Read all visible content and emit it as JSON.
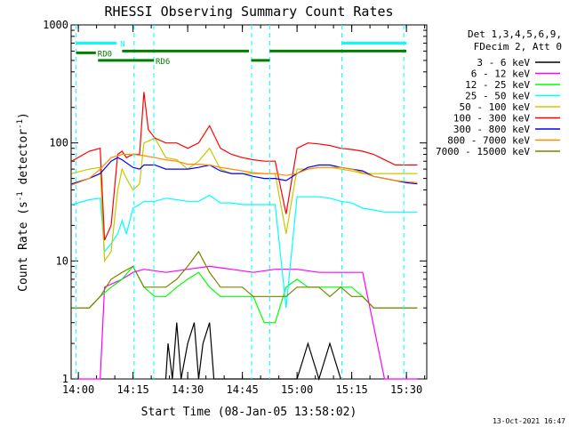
{
  "chart_data": {
    "type": "line",
    "title": "RHESSI Observing Summary Count Rates",
    "xlabel": "Start Time (08-Jan-05 13:58:02)",
    "ylabel_main": "Count Rate (s",
    "ylabel_sup1": "-1",
    "ylabel_mid": " detector",
    "ylabel_sup2": "-1",
    "ylabel_end": ")",
    "yscale": "log",
    "xlim": [
      13.967,
      15.593
    ],
    "ylim": [
      1,
      1000
    ],
    "x_ticks": [
      {
        "value": 14.0,
        "label": "14:00"
      },
      {
        "value": 14.25,
        "label": "14:15"
      },
      {
        "value": 14.5,
        "label": "14:30"
      },
      {
        "value": 14.75,
        "label": "14:45"
      },
      {
        "value": 15.0,
        "label": "15:00"
      },
      {
        "value": 15.25,
        "label": "15:15"
      },
      {
        "value": 15.5,
        "label": "15:30"
      }
    ],
    "y_ticks": [
      {
        "value": 1,
        "label": "1"
      },
      {
        "value": 10,
        "label": "10"
      },
      {
        "value": 100,
        "label": "100"
      },
      {
        "value": 1000,
        "label": "1000"
      }
    ],
    "legend_header": [
      "Det 1,3,4,5,6,9,",
      "FDecim 2, Att 0"
    ],
    "legend_position": "right",
    "timestamp": "13-Oct-2021 16:47",
    "series": [
      {
        "name": "3 - 6 keV",
        "color": "#000000",
        "x": [
          14.4,
          14.41,
          14.43,
          14.45,
          14.47,
          14.5,
          14.53,
          14.55,
          14.57,
          14.6,
          14.62,
          15.0,
          15.05,
          15.1,
          15.15,
          15.2
        ],
        "y": [
          1.0,
          2.0,
          1.0,
          3.0,
          1.0,
          2.0,
          3.0,
          1.0,
          2.0,
          3.0,
          1.0,
          1.0,
          2.0,
          1.0,
          2.0,
          1.0
        ]
      },
      {
        "name": "6 - 12 keV",
        "color": "#ff00ff",
        "x": [
          14.0,
          14.1,
          14.12,
          14.2,
          14.25,
          14.3,
          14.4,
          14.5,
          14.6,
          14.7,
          14.8,
          14.9,
          15.0,
          15.1,
          15.2,
          15.3,
          15.4,
          15.55
        ],
        "y": [
          1.0,
          1.0,
          6.0,
          7.0,
          8.0,
          8.5,
          8.0,
          8.5,
          9.0,
          8.5,
          8.0,
          8.5,
          8.5,
          8.0,
          8.0,
          8.0,
          1.0,
          1.0
        ]
      },
      {
        "name": "12 - 25 keV",
        "color": "#00ff00",
        "x": [
          13.97,
          14.05,
          14.1,
          14.15,
          14.2,
          14.25,
          14.3,
          14.35,
          14.4,
          14.45,
          14.5,
          14.55,
          14.6,
          14.65,
          14.7,
          14.75,
          14.8,
          14.85,
          14.9,
          14.95,
          15.0,
          15.05,
          15.1,
          15.15,
          15.2,
          15.25,
          15.3,
          15.35,
          15.4,
          15.45,
          15.5,
          15.55
        ],
        "y": [
          4.0,
          4.0,
          5.0,
          6.0,
          7.0,
          9.0,
          6.0,
          5.0,
          5.0,
          6.0,
          7.0,
          8.0,
          6.0,
          5.0,
          5.0,
          5.0,
          5.0,
          3.0,
          3.0,
          6.0,
          7.0,
          6.0,
          6.0,
          6.0,
          6.0,
          6.0,
          5.0,
          4.0,
          4.0,
          4.0,
          4.0,
          4.0
        ]
      },
      {
        "name": "25 - 50 keV",
        "color": "#00ffff",
        "x": [
          13.97,
          14.05,
          14.1,
          14.12,
          14.15,
          14.18,
          14.2,
          14.22,
          14.25,
          14.28,
          14.3,
          14.35,
          14.4,
          14.45,
          14.5,
          14.55,
          14.6,
          14.65,
          14.7,
          14.75,
          14.8,
          14.85,
          14.9,
          14.95,
          15.0,
          15.05,
          15.1,
          15.15,
          15.2,
          15.25,
          15.3,
          15.35,
          15.4,
          15.45,
          15.5,
          15.55
        ],
        "y": [
          30,
          33,
          34,
          12,
          14,
          17,
          22,
          17,
          28,
          30,
          32,
          32,
          34,
          33,
          32,
          32,
          36,
          31,
          31,
          30,
          30,
          30,
          30,
          4,
          35,
          35,
          35,
          34,
          32,
          31,
          28,
          27,
          26,
          26,
          26,
          26
        ]
      },
      {
        "name": "50 - 100 keV",
        "color": "#c8c800",
        "x": [
          13.97,
          14.05,
          14.1,
          14.12,
          14.15,
          14.18,
          14.2,
          14.22,
          14.25,
          14.28,
          14.3,
          14.35,
          14.4,
          14.45,
          14.5,
          14.55,
          14.6,
          14.65,
          14.7,
          14.75,
          14.8,
          14.85,
          14.9,
          14.95,
          15.0,
          15.05,
          15.1,
          15.15,
          15.2,
          15.25,
          15.3,
          15.35,
          15.4,
          15.45,
          15.5,
          15.55
        ],
        "y": [
          55,
          60,
          62,
          10,
          12,
          40,
          60,
          50,
          40,
          45,
          100,
          110,
          75,
          72,
          60,
          70,
          90,
          60,
          55,
          55,
          55,
          55,
          55,
          17,
          60,
          60,
          62,
          62,
          60,
          58,
          55,
          55,
          55,
          55,
          55,
          55
        ]
      },
      {
        "name": "100 - 300 keV",
        "color": "#ff0000",
        "x": [
          13.97,
          14.05,
          14.1,
          14.12,
          14.15,
          14.18,
          14.2,
          14.22,
          14.25,
          14.28,
          14.3,
          14.32,
          14.35,
          14.4,
          14.45,
          14.5,
          14.55,
          14.6,
          14.65,
          14.7,
          14.75,
          14.8,
          14.85,
          14.9,
          14.95,
          15.0,
          15.05,
          15.1,
          15.15,
          15.2,
          15.25,
          15.3,
          15.35,
          15.4,
          15.45,
          15.5,
          15.55
        ],
        "y": [
          70,
          85,
          90,
          15,
          20,
          80,
          85,
          75,
          80,
          80,
          270,
          130,
          110,
          100,
          100,
          90,
          100,
          140,
          90,
          80,
          75,
          72,
          70,
          70,
          25,
          90,
          100,
          98,
          95,
          90,
          88,
          85,
          80,
          72,
          65,
          65,
          65
        ]
      },
      {
        "name": "300 - 800 keV",
        "color": "#0000ff",
        "x": [
          13.97,
          14.05,
          14.1,
          14.15,
          14.18,
          14.2,
          14.25,
          14.28,
          14.3,
          14.35,
          14.4,
          14.45,
          14.5,
          14.55,
          14.6,
          14.65,
          14.7,
          14.75,
          14.8,
          14.85,
          14.9,
          14.95,
          15.0,
          15.05,
          15.1,
          15.15,
          15.2,
          15.25,
          15.3,
          15.35,
          15.4,
          15.45,
          15.5,
          15.55
        ],
        "y": [
          45,
          50,
          55,
          70,
          75,
          72,
          62,
          60,
          65,
          65,
          60,
          60,
          60,
          62,
          65,
          58,
          55,
          55,
          52,
          50,
          50,
          48,
          55,
          62,
          65,
          65,
          62,
          60,
          58,
          52,
          50,
          48,
          46,
          45
        ]
      },
      {
        "name": "800 - 7000 keV",
        "color": "#ff8c00",
        "x": [
          13.97,
          14.05,
          14.1,
          14.15,
          14.2,
          14.25,
          14.3,
          14.35,
          14.4,
          14.45,
          14.5,
          14.55,
          14.6,
          14.65,
          14.7,
          14.75,
          14.8,
          14.85,
          14.9,
          14.95,
          15.0,
          15.05,
          15.1,
          15.15,
          15.2,
          15.25,
          15.3,
          15.35,
          15.4,
          15.45,
          15.5,
          15.55
        ],
        "y": [
          44,
          50,
          60,
          75,
          80,
          80,
          78,
          75,
          72,
          70,
          66,
          66,
          65,
          62,
          60,
          58,
          56,
          55,
          55,
          53,
          55,
          60,
          62,
          62,
          62,
          60,
          56,
          52,
          50,
          48,
          47,
          46
        ]
      },
      {
        "name": "7000 - 15000 keV",
        "color": "#808000",
        "x": [
          13.97,
          14.05,
          14.1,
          14.15,
          14.2,
          14.25,
          14.3,
          14.35,
          14.4,
          14.45,
          14.5,
          14.55,
          14.6,
          14.65,
          14.7,
          14.75,
          14.8,
          14.85,
          14.9,
          14.95,
          15.0,
          15.05,
          15.1,
          15.15,
          15.2,
          15.25,
          15.3,
          15.35,
          15.4,
          15.45,
          15.5,
          15.55
        ],
        "y": [
          4,
          4,
          5,
          7,
          8,
          9,
          6,
          6,
          6,
          7,
          9,
          12,
          8,
          6,
          6,
          6,
          5,
          5,
          5,
          5,
          6,
          6,
          6,
          5,
          6,
          5,
          5,
          4,
          4,
          4,
          4,
          4
        ]
      }
    ],
    "vlines": [
      13.99,
      14.255,
      14.345,
      14.792,
      14.875,
      15.205,
      15.488
    ],
    "bars": [
      {
        "label": "N",
        "color": "#00ffff",
        "x0": 13.99,
        "x1": 14.175,
        "y": 700
      },
      {
        "label": "",
        "color": "#00ffff",
        "x0": 15.205,
        "x1": 15.5,
        "y": 700
      },
      {
        "label": "RD0",
        "color": "#008000",
        "x0": 13.99,
        "x1": 14.08,
        "y": 580
      },
      {
        "label": "",
        "color": "#008000",
        "x0": 14.2,
        "x1": 14.78,
        "y": 600
      },
      {
        "label": "",
        "color": "#008000",
        "x0": 14.875,
        "x1": 15.5,
        "y": 600
      },
      {
        "label": "RD6",
        "color": "#008000",
        "x0": 14.09,
        "x1": 14.345,
        "y": 500
      },
      {
        "label": "",
        "color": "#008000",
        "x0": 14.79,
        "x1": 14.875,
        "y": 500
      }
    ]
  }
}
